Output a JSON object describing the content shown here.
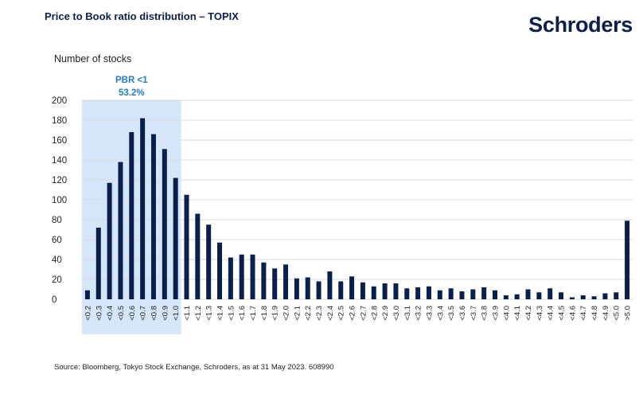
{
  "header": {
    "title": "Price to Book ratio distribution – TOPIX",
    "logo_text": "Schroders"
  },
  "footer": {
    "source": "Source: Bloomberg, Tokyo Stock Exchange, Schroders, as at 31 May 2023. 608990"
  },
  "colors": {
    "bar": "#0b1f4d",
    "highlight_fill": "#d6e6fa",
    "highlight_text": "#1f7fc1",
    "grid": "#d9d9d9"
  },
  "chart_data": {
    "type": "bar",
    "title": "Price to Book ratio distribution – TOPIX",
    "ylabel": "Number of stocks",
    "xlabel": "",
    "ylim": [
      0,
      200
    ],
    "yticks": [
      0,
      20,
      40,
      60,
      80,
      100,
      120,
      140,
      160,
      180,
      200
    ],
    "grid": true,
    "categories": [
      "<0.2",
      "<0.3",
      "<0.4",
      "<0.5",
      "<0.6",
      "<0.7",
      "<0.8",
      "<0.9",
      "<1.0",
      "<1.1",
      "<1.2",
      "<1.3",
      "<1.4",
      "<1.5",
      "<1.6",
      "<1.7",
      "<1.8",
      "<1.9",
      "<2.0",
      "<2.1",
      "<2.2",
      "<2.3",
      "<2.4",
      "<2.5",
      "<2.6",
      "<2.7",
      "<2.8",
      "<2.9",
      "<3.0",
      "<3.1",
      "<3.2",
      "<3.3",
      "<3.4",
      "<3.5",
      "<3.6",
      "<3.7",
      "<3.8",
      "<3.9",
      "<4.0",
      "<4.1",
      "<4.2",
      "<4.3",
      "<4.4",
      "<4.5",
      "<4.6",
      "<4.7",
      "<4.8",
      "<4.9",
      "<5.0",
      ">5.0"
    ],
    "values": [
      9,
      72,
      117,
      138,
      168,
      182,
      166,
      151,
      122,
      105,
      86,
      75,
      57,
      42,
      45,
      45,
      37,
      31,
      35,
      21,
      22,
      18,
      28,
      18,
      23,
      17,
      13,
      16,
      16,
      11,
      12,
      13,
      9,
      11,
      8,
      10,
      12,
      9,
      4,
      5,
      10,
      7,
      11,
      7,
      2,
      4,
      3,
      6,
      7,
      79
    ],
    "highlight": {
      "from_category": "<0.2",
      "to_category": "<1.0",
      "label": "PBR <1",
      "value_label": "53.2%"
    }
  }
}
